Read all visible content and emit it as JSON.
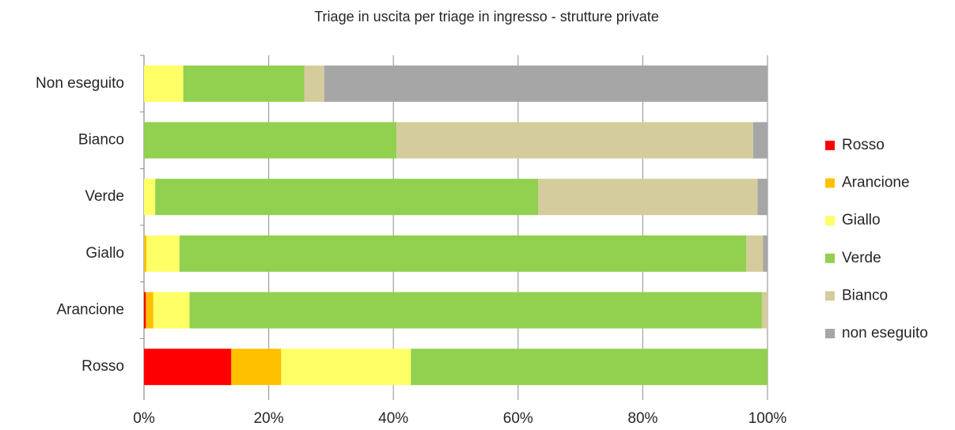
{
  "chart_data": {
    "type": "stacked_barh",
    "title": "Triage in uscita per triage in ingresso -  strutture private",
    "categories": [
      "Non eseguito",
      "Bianco",
      "Verde",
      "Giallo",
      "Arancione",
      "Rosso"
    ],
    "series": [
      {
        "name": "Rosso",
        "color": "#ff0000",
        "values": [
          0,
          0,
          0,
          0,
          0.3,
          14.0
        ]
      },
      {
        "name": "Arancione",
        "color": "#ffc000",
        "values": [
          0,
          0,
          0,
          0.4,
          1.2,
          8.0
        ]
      },
      {
        "name": "Giallo",
        "color": "#ffff66",
        "values": [
          6.3,
          0,
          1.8,
          5.3,
          5.8,
          20.8
        ]
      },
      {
        "name": "Verde",
        "color": "#92d050",
        "values": [
          19.4,
          40.5,
          61.4,
          90.9,
          91.8,
          57.2
        ]
      },
      {
        "name": "Bianco",
        "color": "#d4cc9c",
        "values": [
          3.2,
          57.2,
          35.2,
          2.7,
          0.9,
          0
        ]
      },
      {
        "name": "non eseguito",
        "color": "#a6a6a6",
        "values": [
          71.1,
          2.3,
          1.6,
          0.7,
          0,
          0
        ]
      }
    ],
    "xlim": [
      0,
      100
    ],
    "xticks": [
      {
        "value": 0,
        "label": "0%"
      },
      {
        "value": 20,
        "label": "20%"
      },
      {
        "value": 40,
        "label": "40%"
      },
      {
        "value": 60,
        "label": "60%"
      },
      {
        "value": 80,
        "label": "80%"
      },
      {
        "value": 100,
        "label": "100%"
      }
    ],
    "grid": true,
    "legend": "right"
  }
}
